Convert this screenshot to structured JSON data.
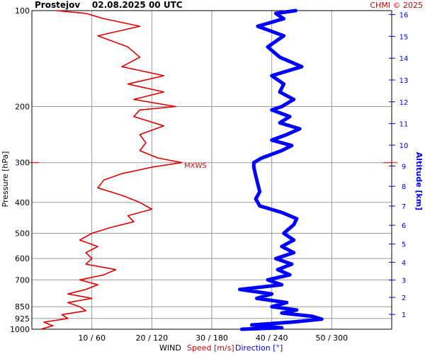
{
  "header": {
    "title": "Prostejov    02.08.2025 00 UTC",
    "copyright": "CHMI © 2025"
  },
  "axis_labels": {
    "left": "Pressure [hPa]",
    "right": "Altitude [km]",
    "bottom_wind": "WIND",
    "bottom_speed": "Speed [m/s]",
    "bottom_direction": "Direction [°]"
  },
  "annotation": {
    "mxws": "MXWS"
  },
  "colors": {
    "speed": "#e00000",
    "direction": "#0000ff",
    "grid": "#9a9a9a",
    "copyright": "#d00000",
    "text": "#000000"
  },
  "chart_data": {
    "type": "line",
    "title": "Prostejov    02.08.2025 00 UTC",
    "y_scale": "log",
    "y_axis": {
      "label": "Pressure [hPa]",
      "ticks": [
        100,
        200,
        300,
        400,
        500,
        600,
        700,
        850,
        925,
        1000
      ],
      "range": [
        1000,
        100
      ],
      "reversed": true
    },
    "y2_axis": {
      "label": "Altitude [km]",
      "ticks": [
        1,
        2,
        3,
        4,
        5,
        6,
        7,
        8,
        9,
        10,
        11,
        12,
        13,
        14,
        15,
        16
      ]
    },
    "x_axis": {
      "label": "WIND  Speed [m/s]  Direction [°]",
      "tick_labels": [
        "10 / 60",
        "20 / 120",
        "30 / 180",
        "40 / 240",
        "50 / 300"
      ],
      "speed_range": [
        0,
        60
      ],
      "direction_range": [
        0,
        360
      ]
    },
    "grid": true,
    "max_wind_level_hPa": 300,
    "series": [
      {
        "name": "Speed [m/s]",
        "unit": "m/s",
        "color": "#e00000",
        "points": [
          [
            1000,
            1.5
          ],
          [
            975,
            3.5
          ],
          [
            950,
            2
          ],
          [
            925,
            6
          ],
          [
            900,
            5
          ],
          [
            875,
            9
          ],
          [
            850,
            8
          ],
          [
            825,
            6
          ],
          [
            800,
            10
          ],
          [
            775,
            6
          ],
          [
            750,
            9
          ],
          [
            725,
            11
          ],
          [
            700,
            8
          ],
          [
            675,
            12
          ],
          [
            650,
            14
          ],
          [
            625,
            9
          ],
          [
            600,
            10
          ],
          [
            575,
            9
          ],
          [
            550,
            11
          ],
          [
            525,
            8
          ],
          [
            500,
            10
          ],
          [
            480,
            13
          ],
          [
            460,
            17
          ],
          [
            440,
            16
          ],
          [
            420,
            20
          ],
          [
            400,
            18
          ],
          [
            380,
            15
          ],
          [
            360,
            11
          ],
          [
            340,
            12
          ],
          [
            325,
            15
          ],
          [
            310,
            20
          ],
          [
            300,
            25
          ],
          [
            290,
            21
          ],
          [
            275,
            18
          ],
          [
            260,
            19
          ],
          [
            245,
            18
          ],
          [
            230,
            22
          ],
          [
            215,
            17
          ],
          [
            205,
            18
          ],
          [
            200,
            24
          ],
          [
            190,
            17
          ],
          [
            180,
            22
          ],
          [
            170,
            16
          ],
          [
            160,
            22
          ],
          [
            150,
            15
          ],
          [
            140,
            18
          ],
          [
            130,
            16
          ],
          [
            120,
            11
          ],
          [
            112,
            18
          ],
          [
            106,
            12
          ],
          [
            102,
            9
          ],
          [
            100,
            4
          ]
        ]
      },
      {
        "name": "Direction [°]",
        "unit": "deg",
        "color": "#0000ff",
        "points": [
          [
            1000,
            210
          ],
          [
            990,
            250
          ],
          [
            970,
            220
          ],
          [
            950,
            260
          ],
          [
            930,
            290
          ],
          [
            910,
            280
          ],
          [
            890,
            250
          ],
          [
            870,
            265
          ],
          [
            850,
            240
          ],
          [
            825,
            255
          ],
          [
            800,
            225
          ],
          [
            775,
            240
          ],
          [
            750,
            208
          ],
          [
            725,
            250
          ],
          [
            700,
            236
          ],
          [
            675,
            258
          ],
          [
            650,
            246
          ],
          [
            625,
            260
          ],
          [
            600,
            244
          ],
          [
            575,
            262
          ],
          [
            550,
            250
          ],
          [
            525,
            262
          ],
          [
            500,
            252
          ],
          [
            470,
            262
          ],
          [
            450,
            265
          ],
          [
            430,
            250
          ],
          [
            410,
            228
          ],
          [
            390,
            224
          ],
          [
            370,
            228
          ],
          [
            350,
            226
          ],
          [
            330,
            224
          ],
          [
            310,
            222
          ],
          [
            300,
            222
          ],
          [
            290,
            230
          ],
          [
            275,
            250
          ],
          [
            265,
            260
          ],
          [
            255,
            240
          ],
          [
            245,
            255
          ],
          [
            235,
            268
          ],
          [
            225,
            248
          ],
          [
            215,
            258
          ],
          [
            205,
            240
          ],
          [
            200,
            250
          ],
          [
            190,
            262
          ],
          [
            180,
            248
          ],
          [
            170,
            252
          ],
          [
            160,
            240
          ],
          [
            150,
            270
          ],
          [
            140,
            248
          ],
          [
            130,
            236
          ],
          [
            120,
            252
          ],
          [
            112,
            226
          ],
          [
            106,
            252
          ],
          [
            102,
            244
          ],
          [
            100,
            264
          ]
        ]
      }
    ]
  }
}
